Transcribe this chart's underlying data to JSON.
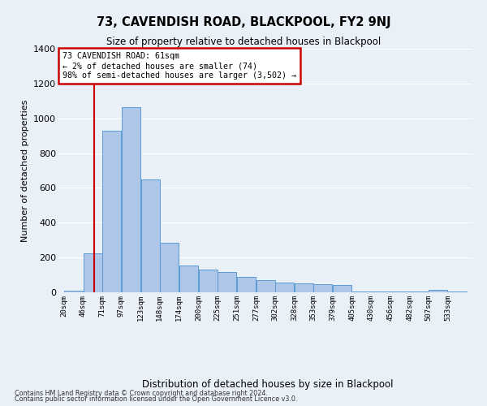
{
  "title": "73, CAVENDISH ROAD, BLACKPOOL, FY2 9NJ",
  "subtitle": "Size of property relative to detached houses in Blackpool",
  "xlabel": "Distribution of detached houses by size in Blackpool",
  "ylabel": "Number of detached properties",
  "annotation_line1": "73 CAVENDISH ROAD: 61sqm",
  "annotation_line2": "← 2% of detached houses are smaller (74)",
  "annotation_line3": "98% of semi-detached houses are larger (3,502) →",
  "footnote1": "Contains HM Land Registry data © Crown copyright and database right 2024.",
  "footnote2": "Contains public sector information licensed under the Open Government Licence v3.0.",
  "property_size": 61,
  "bar_left_edges": [
    20,
    46,
    71,
    97,
    123,
    148,
    174,
    200,
    225,
    251,
    277,
    302,
    328,
    353,
    379,
    405,
    430,
    456,
    482,
    507,
    533
  ],
  "bar_heights": [
    10,
    225,
    930,
    1065,
    650,
    285,
    155,
    130,
    115,
    90,
    70,
    55,
    50,
    45,
    40,
    5,
    5,
    5,
    5,
    15,
    5
  ],
  "bin_width": 26,
  "tick_labels": [
    "20sqm",
    "46sqm",
    "71sqm",
    "97sqm",
    "123sqm",
    "148sqm",
    "174sqm",
    "200sqm",
    "225sqm",
    "251sqm",
    "277sqm",
    "302sqm",
    "328sqm",
    "353sqm",
    "379sqm",
    "405sqm",
    "430sqm",
    "456sqm",
    "482sqm",
    "507sqm",
    "533sqm"
  ],
  "bar_color": "#aec6e8",
  "bar_edge_color": "#5b9bd5",
  "vline_color": "#cc0000",
  "annotation_box_color": "#cc0000",
  "bg_color": "#eaf0f8",
  "plot_bg_color": "#eaf0f8",
  "grid_color": "#ffffff",
  "ylim": [
    0,
    1400
  ],
  "yticks": [
    0,
    200,
    400,
    600,
    800,
    1000,
    1200,
    1400
  ]
}
